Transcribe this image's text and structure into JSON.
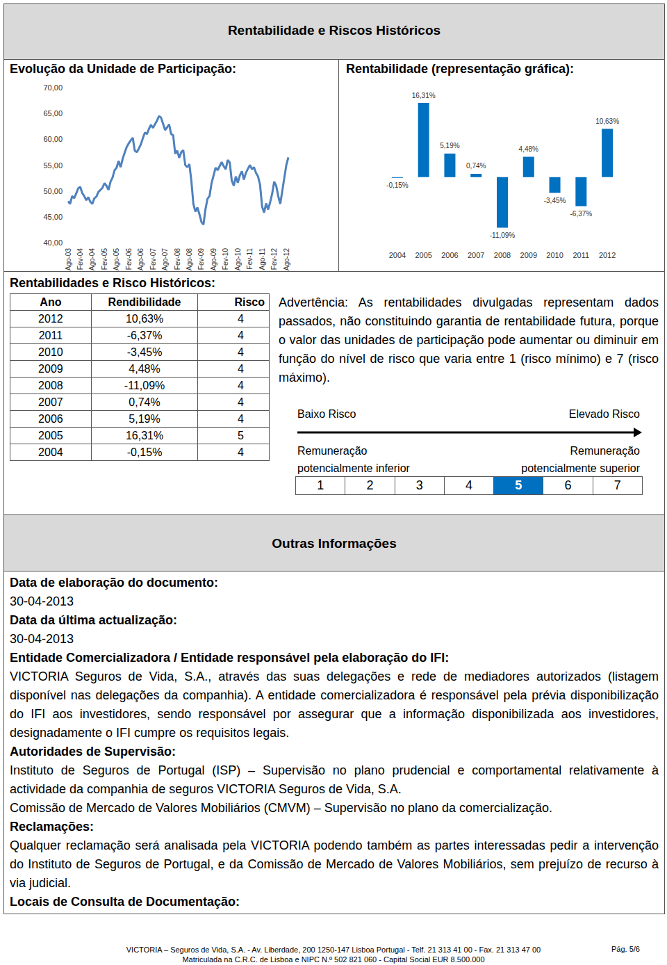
{
  "header": {
    "title": "Rentabilidade e Riscos Históricos"
  },
  "chart_data": [
    {
      "type": "line",
      "title": "Evolução da Unidade de Participação:",
      "categories": [
        "Ago-03",
        null,
        null,
        null,
        null,
        null,
        "Fev-04",
        null,
        null,
        null,
        null,
        null,
        "Ago-04",
        null,
        null,
        null,
        null,
        null,
        "Fev-05",
        null,
        null,
        null,
        null,
        null,
        "Ago-05",
        null,
        null,
        null,
        null,
        null,
        "Fev-06",
        null,
        null,
        null,
        null,
        null,
        "Ago-06",
        null,
        null,
        null,
        null,
        null,
        "Fev-07",
        null,
        null,
        null,
        null,
        null,
        "Ago-07",
        null,
        null,
        null,
        null,
        null,
        "Fev-08",
        null,
        null,
        null,
        null,
        null,
        "Ago-08",
        null,
        null,
        null,
        null,
        null,
        "Fev-09",
        null,
        null,
        null,
        null,
        null,
        "Ago-09",
        null,
        null,
        null,
        null,
        null,
        "Fev-10",
        null,
        null,
        null,
        null,
        null,
        "Ago-10",
        null,
        null,
        null,
        null,
        null,
        "Fev-11",
        null,
        null,
        null,
        null,
        null,
        "Ago-11",
        null,
        null,
        null,
        null,
        null,
        "Fev-12",
        null,
        null,
        null,
        null,
        null,
        "Ago-12",
        null
      ],
      "values": [
        48.0,
        47.5,
        49.0,
        48.6,
        49.5,
        50.5,
        50.8,
        49.6,
        49.0,
        48.2,
        48.8,
        47.9,
        47.5,
        48.6,
        48.9,
        49.8,
        50.2,
        50.6,
        51.5,
        51.0,
        50.2,
        51.8,
        52.6,
        54.0,
        54.5,
        55.8,
        54.6,
        56.2,
        57.4,
        58.5,
        59.2,
        59.8,
        60.3,
        57.8,
        57.5,
        58.2,
        59.0,
        60.2,
        61.3,
        61.0,
        62.0,
        62.8,
        62.2,
        62.9,
        63.6,
        64.5,
        64.2,
        63.0,
        61.8,
        62.3,
        62.9,
        61.0,
        60.8,
        57.2,
        57.8,
        56.4,
        57.5,
        57.9,
        55.0,
        54.6,
        55.2,
        52.0,
        47.5,
        46.0,
        46.8,
        45.5,
        44.0,
        43.5,
        46.5,
        48.5,
        49.0,
        51.5,
        53.0,
        54.5,
        54.0,
        54.8,
        55.6,
        54.8,
        54.2,
        56.0,
        55.5,
        52.0,
        51.0,
        52.8,
        51.6,
        53.0,
        53.8,
        52.2,
        53.5,
        54.3,
        55.0,
        54.2,
        54.6,
        53.5,
        52.8,
        51.2,
        47.0,
        45.8,
        47.6,
        46.4,
        47.8,
        49.5,
        51.8,
        51.0,
        49.0,
        47.5,
        50.0,
        52.5,
        55.0,
        56.5
      ],
      "color": "#4f81bd",
      "ylim": [
        40,
        70
      ],
      "yticks": [
        {
          "value": 40,
          "label": "40,00"
        },
        {
          "value": 45,
          "label": "45,00"
        },
        {
          "value": 50,
          "label": "50,00"
        },
        {
          "value": 55,
          "label": "55,00"
        },
        {
          "value": 60,
          "label": "60,00"
        },
        {
          "value": 65,
          "label": "65,00"
        },
        {
          "value": 70,
          "label": "70,00"
        }
      ],
      "grid": false
    },
    {
      "type": "bar",
      "title": "Rentabilidade (representação gráfica):",
      "categories": [
        "2004",
        "2005",
        "2006",
        "2007",
        "2008",
        "2009",
        "2010",
        "2011",
        "2012"
      ],
      "values": [
        -0.15,
        16.31,
        5.19,
        0.74,
        -11.09,
        4.48,
        -3.45,
        -6.37,
        10.63
      ],
      "value_labels": [
        "-0,15%",
        "16,31%",
        "5,19%",
        "0,74%",
        "-11,09%",
        "4,48%",
        "-3,45%",
        "-6,37%",
        "10,63%"
      ],
      "color": "#0070c0",
      "ylim": [
        -15,
        18
      ],
      "grid": false,
      "data_labels": true,
      "tick_labels": "x"
    }
  ],
  "history_table": {
    "title": "Rentabilidades e Risco Históricos:",
    "columns": [
      "Ano",
      "Rendibilidade",
      "Risco"
    ],
    "rows": [
      [
        "2012",
        "10,63%",
        "4"
      ],
      [
        "2011",
        "-6,37%",
        "4"
      ],
      [
        "2010",
        "-3,45%",
        "4"
      ],
      [
        "2009",
        "4,48%",
        "4"
      ],
      [
        "2008",
        "-11,09%",
        "4"
      ],
      [
        "2007",
        "0,74%",
        "4"
      ],
      [
        "2006",
        "5,19%",
        "4"
      ],
      [
        "2005",
        "16,31%",
        "5"
      ],
      [
        "2004",
        "-0,15%",
        "4"
      ]
    ]
  },
  "warning": "Advertência: As rentabilidades divulgadas representam dados passados, não constituindo garantia de rentabilidade futura, porque o valor das unidades de participação pode aumentar ou diminuir em função do nível de risco que varia entre 1 (risco mínimo) e 7 (risco máximo).",
  "risk_scale": {
    "low_label": "Baixo Risco",
    "high_label": "Elevado Risco",
    "low_note": [
      "Remuneração",
      "potencialmente inferior"
    ],
    "high_note": [
      "Remuneração",
      "potencialmente superior"
    ],
    "levels": [
      "1",
      "2",
      "3",
      "4",
      "5",
      "6",
      "7"
    ],
    "selected": "5"
  },
  "other_info": {
    "title": "Outras Informações",
    "items": [
      {
        "label": "Data de elaboração do documento:",
        "paragraphs": [
          "30-04-2013"
        ]
      },
      {
        "label": "Data da última actualização:",
        "paragraphs": [
          "30-04-2013"
        ]
      },
      {
        "label": "Entidade Comercializadora / Entidade responsável pela elaboração do IFI:",
        "paragraphs": [
          "VICTORIA Seguros de Vida, S.A., através das suas delegações e rede de mediadores autorizados (listagem disponível nas delegações da companhia). A entidade comercializadora é responsável pela prévia disponibilização do IFI aos investidores, sendo responsável por assegurar que a informação disponibilizada aos investidores, designadamente o IFI cumpre os requisitos legais."
        ]
      },
      {
        "label": "Autoridades de Supervisão:",
        "paragraphs": [
          "Instituto de Seguros de Portugal (ISP) – Supervisão no plano prudencial e comportamental relativamente à actividade da companhia de seguros VICTORIA Seguros de Vida, S.A.",
          "Comissão de Mercado de Valores Mobiliários (CMVM) – Supervisão no plano da comercialização."
        ]
      },
      {
        "label": "Reclamações:",
        "paragraphs": [
          "Qualquer reclamação será analisada pela VICTORIA podendo também as partes interessadas pedir a intervenção do Instituto de Seguros de Portugal, e da Comissão de Mercado de Valores Mobiliários, sem prejuízo de recurso à via judicial."
        ]
      },
      {
        "label": "Locais de Consulta de Documentação:",
        "paragraphs": []
      }
    ]
  },
  "footer": {
    "lines": [
      "VICTORIA – Seguros de Vida, S.A. - Av. Liberdade, 200 1250-147 Lisboa Portugal - Telf. 21 313 41 00 - Fax. 21 313 47 00",
      "Matriculada na C.R.C. de Lisboa e NIPC N.º 502 821 060 - Capital Social EUR 8.500.000"
    ],
    "page": "Pág. 5/6"
  }
}
